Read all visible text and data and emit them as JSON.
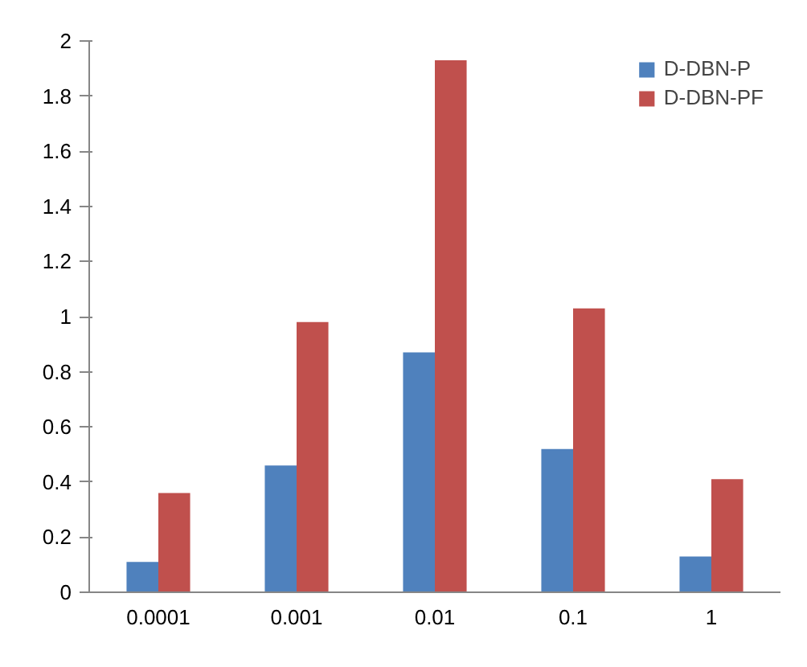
{
  "chart_data": {
    "type": "bar",
    "categories": [
      "0.0001",
      "0.001",
      "0.01",
      "0.1",
      "1"
    ],
    "series": [
      {
        "name": "D-DBN-P",
        "color": "#4f81bd",
        "values": [
          0.11,
          0.46,
          0.87,
          0.52,
          0.13
        ]
      },
      {
        "name": "D-DBN-PF",
        "color": "#c0504d",
        "values": [
          0.36,
          0.98,
          1.93,
          1.03,
          0.41
        ]
      }
    ],
    "ylim": [
      0,
      2
    ],
    "yticks": [
      0,
      0.2,
      0.4,
      0.6,
      0.8,
      1,
      1.2,
      1.4,
      1.6,
      1.8,
      2
    ],
    "grid": false,
    "legend": "top right"
  }
}
